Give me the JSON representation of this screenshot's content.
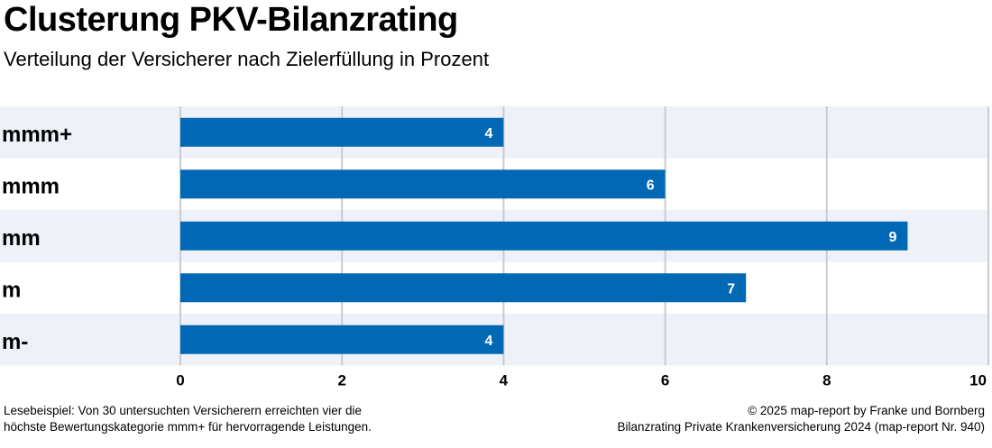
{
  "header": {
    "title": "Clusterung PKV-Bilanzrating",
    "subtitle": "Verteilung der Versicherer nach Zielerfüllung in Prozent"
  },
  "footnote": {
    "left_line1": "Lesebeispiel: Von 30 untersuchten Versicherern erreichten vier die",
    "left_line2": "höchste Bewertungskategorie mmm+ für hervorragende Leistungen.",
    "right_line1": "© 2025 map-report by Franke und Bornberg",
    "right_line2": "Bilanzrating Private Krankenversicherung 2024 (map-report Nr. 940)"
  },
  "colors": {
    "bar": "#0068b4",
    "band": "#eef1f8",
    "grid": "#c8ccd2",
    "bar_label": "#ffffff"
  },
  "chart_data": {
    "type": "bar",
    "orientation": "horizontal",
    "title": "Clusterung PKV-Bilanzrating",
    "subtitle": "Verteilung der Versicherer nach Zielerfüllung in Prozent",
    "categories": [
      "mmm+",
      "mmm",
      "mm",
      "m",
      "m-"
    ],
    "values": [
      4,
      6,
      9,
      7,
      4
    ],
    "xlim": [
      0,
      10
    ],
    "xticks": [
      0,
      2,
      4,
      6,
      8,
      10
    ],
    "xlabel": "",
    "ylabel": "",
    "grid": true,
    "data_labels": true
  }
}
